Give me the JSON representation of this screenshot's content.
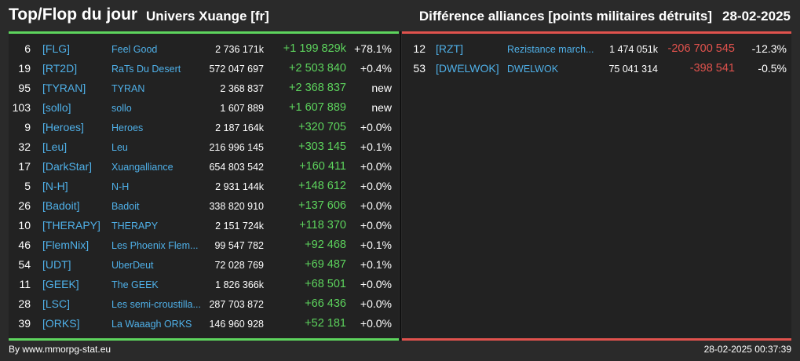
{
  "header": {
    "title": "Top/Flop du jour",
    "universe": "Univers Xuange [fr]",
    "metric": "Différence alliances [points militaires détruits]",
    "date": "28-02-2025"
  },
  "top": [
    {
      "rank": "6",
      "tag": "[FLG]",
      "name": "Feel Good",
      "points": "2 736 171k",
      "diff": "+1 199 829k",
      "pct": "+78.1%"
    },
    {
      "rank": "19",
      "tag": "[RT2D]",
      "name": "RaTs Du Desert",
      "points": "572 047 697",
      "diff": "+2 503 840",
      "pct": "+0.4%"
    },
    {
      "rank": "95",
      "tag": "[TYRAN]",
      "name": "TYRAN",
      "points": "2 368 837",
      "diff": "+2 368 837",
      "pct": "new"
    },
    {
      "rank": "103",
      "tag": "[sollo]",
      "name": "sollo",
      "points": "1 607 889",
      "diff": "+1 607 889",
      "pct": "new"
    },
    {
      "rank": "9",
      "tag": "[Heroes]",
      "name": "Heroes",
      "points": "2 187 164k",
      "diff": "+320 705",
      "pct": "+0.0%"
    },
    {
      "rank": "32",
      "tag": "[Leu]",
      "name": "Leu",
      "points": "216 996 145",
      "diff": "+303 145",
      "pct": "+0.1%"
    },
    {
      "rank": "17",
      "tag": "[DarkStar]",
      "name": "Xuangalliance",
      "points": "654 803 542",
      "diff": "+160 411",
      "pct": "+0.0%"
    },
    {
      "rank": "5",
      "tag": "[N-H]",
      "name": "N-H",
      "points": "2 931 144k",
      "diff": "+148 612",
      "pct": "+0.0%"
    },
    {
      "rank": "26",
      "tag": "[Badoit]",
      "name": "Badoit",
      "points": "338 820 910",
      "diff": "+137 606",
      "pct": "+0.0%"
    },
    {
      "rank": "10",
      "tag": "[THERAPY]",
      "name": "THERAPY",
      "points": "2 151 724k",
      "diff": "+118 370",
      "pct": "+0.0%"
    },
    {
      "rank": "46",
      "tag": "[FlemNix]",
      "name": "Les Phoenix Flem...",
      "points": "99 547 782",
      "diff": "+92 468",
      "pct": "+0.1%"
    },
    {
      "rank": "54",
      "tag": "[UDT]",
      "name": "UberDeut",
      "points": "72 028 769",
      "diff": "+69 487",
      "pct": "+0.1%"
    },
    {
      "rank": "11",
      "tag": "[GEEK]",
      "name": "The GEEK",
      "points": "1 826 366k",
      "diff": "+68 501",
      "pct": "+0.0%"
    },
    {
      "rank": "28",
      "tag": "[LSC]",
      "name": "Les semi-croustilla...",
      "points": "287 703 872",
      "diff": "+66 436",
      "pct": "+0.0%"
    },
    {
      "rank": "39",
      "tag": "[ORKS]",
      "name": "La Waaagh ORKS",
      "points": "146 960 928",
      "diff": "+52 181",
      "pct": "+0.0%"
    }
  ],
  "flop": [
    {
      "rank": "12",
      "tag": "[RZT]",
      "name": "Rezistance march...",
      "points": "1 474 051k",
      "diff": "-206 700 545",
      "pct": "-12.3%"
    },
    {
      "rank": "53",
      "tag": "[DWELWOK]",
      "name": "DWELWOK",
      "points": "75 041 314",
      "diff": "-398 541",
      "pct": "-0.5%"
    }
  ],
  "footer": {
    "source": "By www.mmorpg-stat.eu",
    "timestamp": "28-02-2025 00:37:39"
  },
  "colors": {
    "positive": "#5dd45d",
    "negative": "#e0524d",
    "link": "#4fb0e8"
  }
}
